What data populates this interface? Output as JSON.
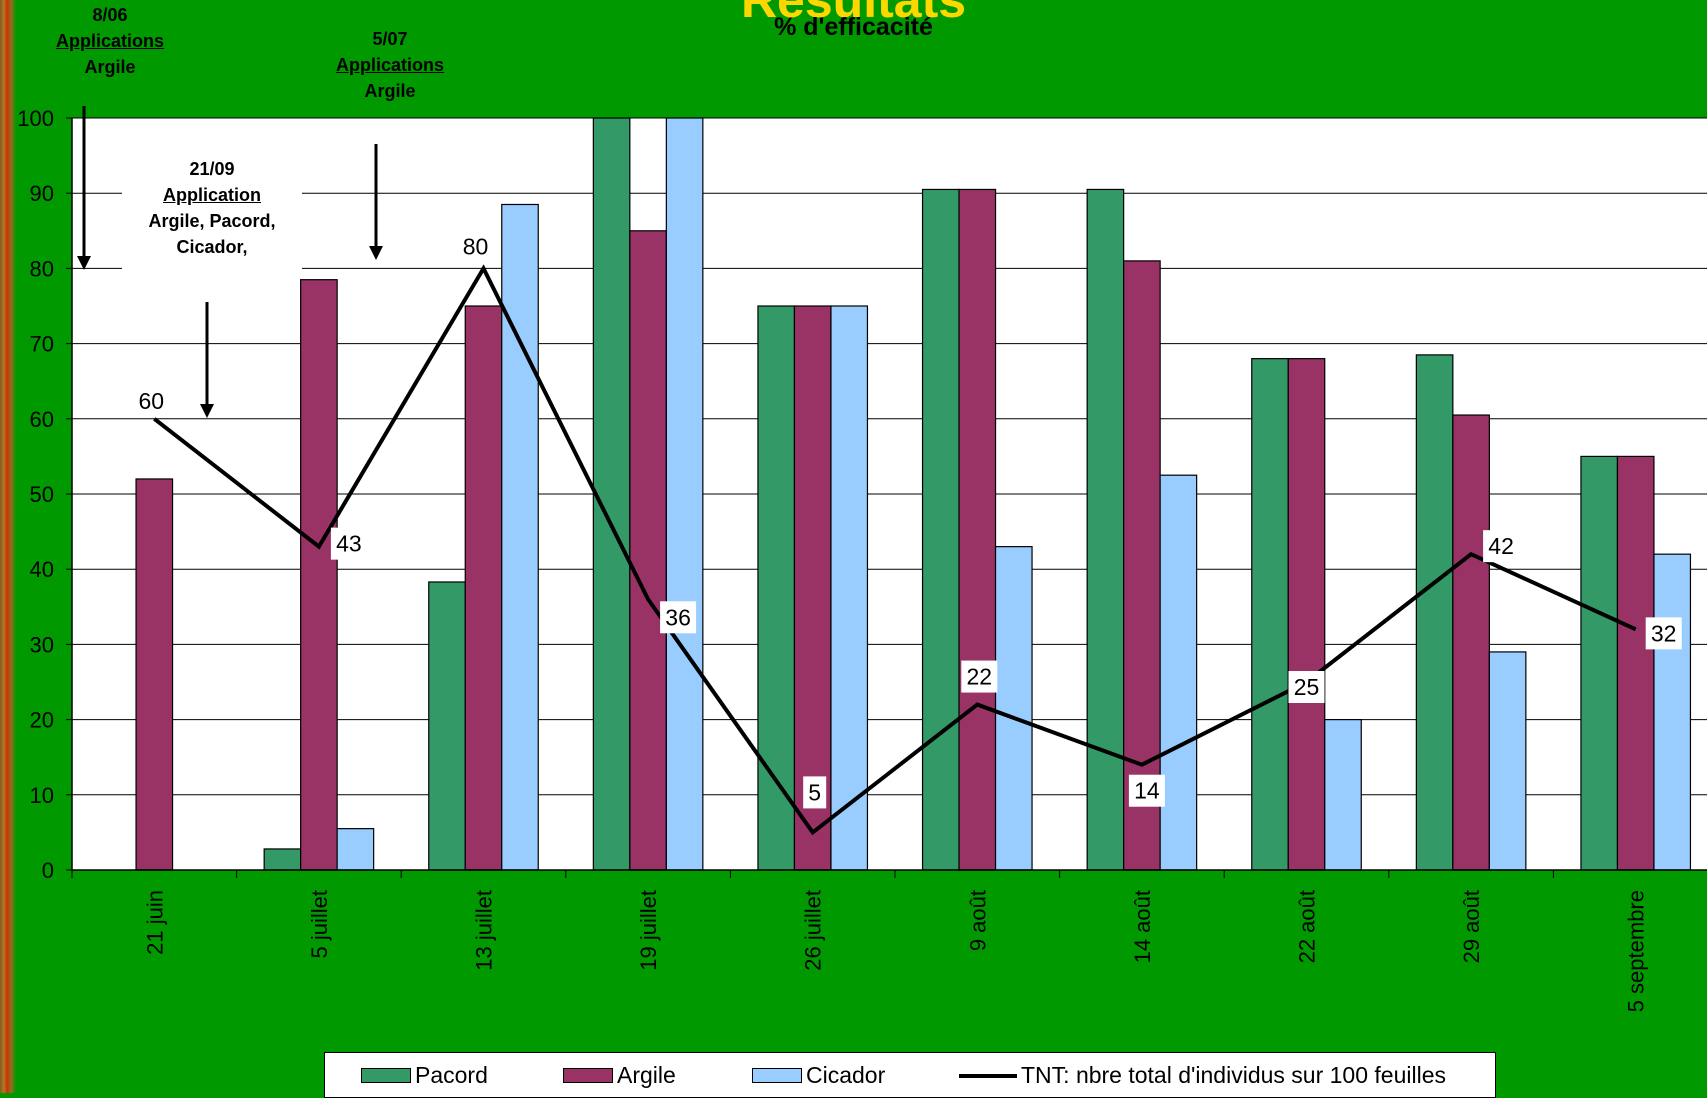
{
  "title": "Résultats",
  "subtitle": "% d'efficacité",
  "annotations": [
    {
      "date": "8/06",
      "heading": "Applications",
      "detail": "Argile"
    },
    {
      "date": "5/07",
      "heading": "Applications",
      "detail": "Argile"
    },
    {
      "date": "21/09",
      "heading": "Application",
      "detail": "Argile, Pacord,",
      "detail2": "Cicador,"
    }
  ],
  "colors": {
    "Pacord": "#339966",
    "Argile": "#993366",
    "Cicador": "#99ccff",
    "line": "#000000",
    "background": "#009900",
    "plot_area": "#ffffff",
    "title": "#ffd700"
  },
  "chart_data": {
    "type": "bar",
    "title": "Résultats",
    "subtitle": "% d'efficacité",
    "categories": [
      "21 juin",
      "5 juillet",
      "13 juillet",
      "19 juillet",
      "26 juillet",
      "9 août",
      "14 août",
      "22 août",
      "29 août",
      "5 septembre"
    ],
    "series": [
      {
        "name": "Pacord",
        "type": "bar",
        "values": [
          null,
          2.8,
          38.3,
          100,
          75,
          90.5,
          90.5,
          68,
          68.5,
          55
        ]
      },
      {
        "name": "Argile",
        "type": "bar",
        "values": [
          52,
          78.5,
          75,
          85,
          75,
          90.5,
          81,
          68,
          60.5,
          55
        ]
      },
      {
        "name": "Cicador",
        "type": "bar",
        "values": [
          null,
          5.5,
          88.5,
          100,
          75,
          43,
          52.5,
          20,
          29,
          42
        ]
      },
      {
        "name": "TNT: nbre total d'individus sur 100 feuilles",
        "type": "line",
        "values": [
          60,
          43,
          80,
          36,
          5,
          22,
          14,
          25,
          42,
          32
        ],
        "labels": [
          "60",
          "43",
          "80",
          "36",
          "5",
          "22",
          "14",
          "25",
          "42",
          "32"
        ]
      }
    ],
    "yticks": [
      "0",
      "10",
      "20",
      "30",
      "40",
      "50",
      "60",
      "70",
      "80",
      "90",
      "100"
    ],
    "ylim": [
      0,
      100
    ],
    "grid": true,
    "legend": "bottom"
  }
}
